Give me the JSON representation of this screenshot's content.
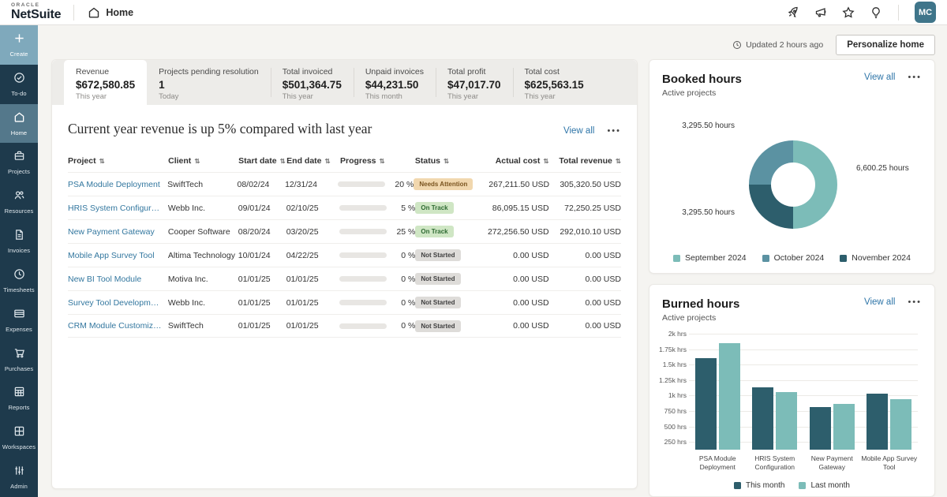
{
  "ui": {
    "overflow_dots": "•••"
  },
  "topbar": {
    "brand_small": "ORACLE",
    "brand": "NetSuite",
    "breadcrumb": "Home",
    "icons": [
      "rocket-icon",
      "megaphone-icon",
      "star-icon",
      "bulb-icon"
    ],
    "avatar": "MC"
  },
  "sidebar": {
    "items": [
      {
        "label": "Create",
        "icon": "plus-icon",
        "variant": "create"
      },
      {
        "label": "To-do",
        "icon": "check-circle-icon"
      },
      {
        "label": "Home",
        "icon": "home-icon",
        "active": true
      },
      {
        "label": "Projects",
        "icon": "briefcase-icon"
      },
      {
        "label": "Resources",
        "icon": "people-icon"
      },
      {
        "label": "Invoices",
        "icon": "document-icon"
      },
      {
        "label": "Timesheets",
        "icon": "clock-icon"
      },
      {
        "label": "Expenses",
        "icon": "card-icon"
      },
      {
        "label": "Purchases",
        "icon": "cart-icon"
      },
      {
        "label": "Reports",
        "icon": "report-icon"
      },
      {
        "label": "Workspaces",
        "icon": "workspace-icon"
      },
      {
        "label": "Admin",
        "icon": "sliders-icon"
      }
    ]
  },
  "content_header": {
    "updated": "Updated 2 hours ago",
    "personalize": "Personalize home"
  },
  "kpis": [
    {
      "label": "Revenue",
      "value": "$672,580.85",
      "period": "This year",
      "active": true
    },
    {
      "label": "Projects pending resolution",
      "value": "1",
      "period": "Today"
    },
    {
      "label": "Total invoiced",
      "value": "$501,364.75",
      "period": "This year"
    },
    {
      "label": "Unpaid invoices",
      "value": "$44,231.50",
      "period": "This month"
    },
    {
      "label": "Total profit",
      "value": "$47,017.70",
      "period": "This year"
    },
    {
      "label": "Total cost",
      "value": "$625,563.15",
      "period": "This year"
    }
  ],
  "insight": {
    "title": "Current year revenue is up 5% compared with last year",
    "view_all": "View all"
  },
  "table": {
    "columns": [
      "Project",
      "Client",
      "Start date",
      "End date",
      "Progress",
      "Status",
      "Actual cost",
      "Total revenue"
    ],
    "rows": [
      {
        "project": "PSA Module Deployment",
        "client": "SwiftTech",
        "start": "08/02/24",
        "end": "12/31/24",
        "progress_pct": 20,
        "progress_label": "20 %",
        "status": "Needs Attention",
        "status_type": "warning",
        "actual_cost": "267,211.50 USD",
        "total_revenue": "305,320.50 USD"
      },
      {
        "project": "HRIS System Configuration",
        "client": "Webb Inc.",
        "start": "09/01/24",
        "end": "02/10/25",
        "progress_pct": 5,
        "progress_label": "5 %",
        "status": "On Track",
        "status_type": "success",
        "actual_cost": "86,095.15 USD",
        "total_revenue": "72,250.25 USD"
      },
      {
        "project": "New Payment Gateway",
        "client": "Cooper Software",
        "start": "08/20/24",
        "end": "03/20/25",
        "progress_pct": 25,
        "progress_label": "25 %",
        "status": "On Track",
        "status_type": "success",
        "actual_cost": "272,256.50 USD",
        "total_revenue": "292,010.10 USD"
      },
      {
        "project": "Mobile App Survey Tool",
        "client": "Altima Technology",
        "start": "10/01/24",
        "end": "04/22/25",
        "progress_pct": 0,
        "progress_label": "0 %",
        "status": "Not Started",
        "status_type": "neutral",
        "actual_cost": "0.00 USD",
        "total_revenue": "0.00 USD"
      },
      {
        "project": "New BI Tool Module",
        "client": "Motiva Inc.",
        "start": "01/01/25",
        "end": "01/01/25",
        "progress_pct": 0,
        "progress_label": "0 %",
        "status": "Not Started",
        "status_type": "neutral",
        "actual_cost": "0.00 USD",
        "total_revenue": "0.00 USD"
      },
      {
        "project": "Survey Tool Development",
        "client": "Webb Inc.",
        "start": "01/01/25",
        "end": "01/01/25",
        "progress_pct": 0,
        "progress_label": "0 %",
        "status": "Not Started",
        "status_type": "neutral",
        "actual_cost": "0.00 USD",
        "total_revenue": "0.00 USD"
      },
      {
        "project": "CRM Module Customizat...",
        "client": "SwiftTech",
        "start": "01/01/25",
        "end": "01/01/25",
        "progress_pct": 0,
        "progress_label": "0 %",
        "status": "Not Started",
        "status_type": "neutral",
        "actual_cost": "0.00 USD",
        "total_revenue": "0.00 USD"
      }
    ]
  },
  "booked": {
    "title": "Booked hours",
    "subtitle": "Active projects",
    "view_all": "View all"
  },
  "burned": {
    "title": "Burned hours",
    "subtitle": "Active projects",
    "view_all": "View all"
  },
  "colors": {
    "teal_light": "#7cbcb8",
    "teal_medium": "#5b92a2",
    "teal_dark": "#2d5e6c",
    "accent_link": "#2e75a8",
    "sidebar_bg": "#1e3a4c",
    "sidebar_create": "#7fa9bc",
    "sidebar_active": "#54788b",
    "avatar_bg": "#3f758a"
  },
  "chart_data": [
    {
      "type": "pie",
      "title": "Booked hours",
      "subtitle": "Active projects",
      "series": [
        {
          "name": "September 2024",
          "value": 6600.25,
          "label": "6,600.25 hours",
          "color": "#7cbcb8",
          "label_pos": "right"
        },
        {
          "name": "October 2024",
          "value": 3295.5,
          "label": "3,295.50 hours",
          "color": "#5b92a2",
          "label_pos": "top-left"
        },
        {
          "name": "November 2024",
          "value": 3295.5,
          "label": "3,295.50 hours",
          "color": "#2d5e6c",
          "label_pos": "bottom-left"
        }
      ],
      "clockwise_order_from_top": [
        "September 2024",
        "November 2024",
        "October 2024"
      ],
      "donut": true,
      "legend_position": "bottom"
    },
    {
      "type": "bar",
      "title": "Burned hours",
      "subtitle": "Active projects",
      "categories": [
        "PSA Module Deployment",
        "HRIS System Configuration",
        "New Payment Gateway",
        "Mobile App Survey Tool"
      ],
      "series": [
        {
          "name": "This month",
          "values": [
            1600,
            1130,
            810,
            1030
          ],
          "color": "#2d5e6c"
        },
        {
          "name": "Last month",
          "values": [
            1850,
            1060,
            870,
            940
          ],
          "color": "#7cbcb8"
        }
      ],
      "ylabel": "hrs",
      "ylim": [
        125,
        2000
      ],
      "ytick_values": [
        2000,
        1750,
        1500,
        1250,
        1000,
        750,
        500,
        250
      ],
      "ytick_labels": [
        "2k hrs",
        "1.75k hrs",
        "1.5k hrs",
        "1.25k hrs",
        "1k hrs",
        "750 hrs",
        "500 hrs",
        "250 hrs"
      ],
      "grid": true,
      "legend_position": "bottom"
    }
  ]
}
